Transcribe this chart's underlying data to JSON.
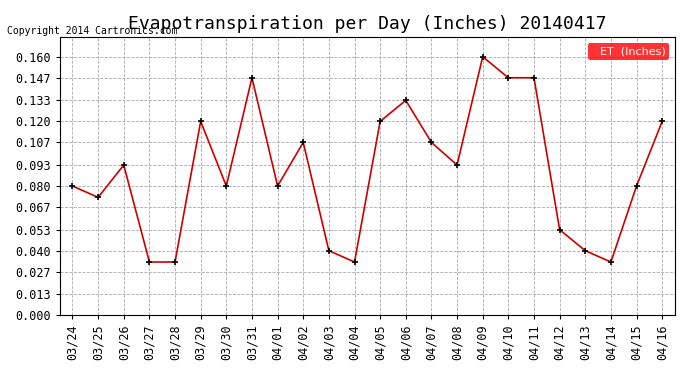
{
  "title": "Evapotranspiration per Day (Inches) 20140417",
  "copyright_text": "Copyright 2014 Cartronics.com",
  "legend_label": "ET  (Inches)",
  "legend_bg": "#ff0000",
  "legend_text_color": "#ffffff",
  "dates": [
    "03/24",
    "03/25",
    "03/26",
    "03/27",
    "03/28",
    "03/29",
    "03/30",
    "03/31",
    "04/01",
    "04/02",
    "04/03",
    "04/04",
    "04/05",
    "04/06",
    "04/07",
    "04/08",
    "04/09",
    "04/10",
    "04/11",
    "04/12",
    "04/13",
    "04/14",
    "04/15",
    "04/16"
  ],
  "values": [
    0.08,
    0.073,
    0.093,
    0.033,
    0.033,
    0.12,
    0.08,
    0.147,
    0.08,
    0.107,
    0.04,
    0.033,
    0.12,
    0.133,
    0.107,
    0.093,
    0.16,
    0.147,
    0.147,
    0.053,
    0.04,
    0.033,
    0.08,
    0.12
  ],
  "yticks": [
    0.0,
    0.013,
    0.027,
    0.04,
    0.053,
    0.067,
    0.08,
    0.093,
    0.107,
    0.12,
    0.133,
    0.147,
    0.16
  ],
  "ylim": [
    0.0,
    0.172
  ],
  "line_color": "#cc0000",
  "marker_color": "#000000",
  "bg_color": "#ffffff",
  "grid_color": "#aaaaaa",
  "title_fontsize": 13,
  "tick_fontsize": 8.5
}
